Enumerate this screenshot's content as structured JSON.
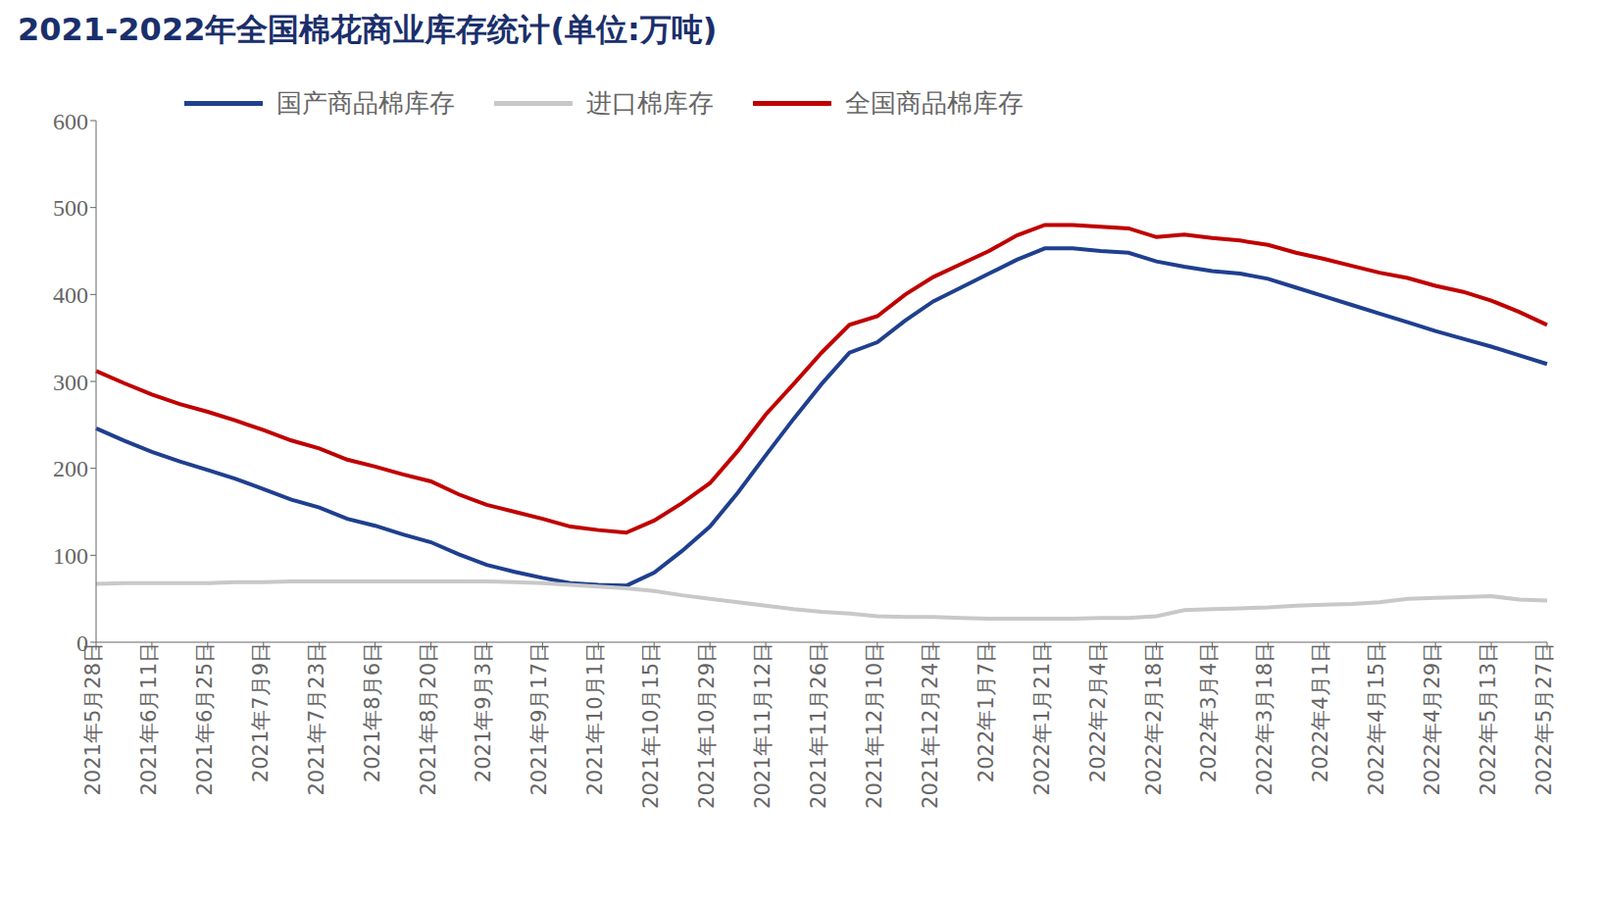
{
  "chart_data": {
    "type": "line",
    "title": "2021-2022年全国棉花商业库存统计(单位:万吨)",
    "categories": [
      "2021年5月28日",
      null,
      "2021年6月11日",
      null,
      "2021年6月25日",
      null,
      "2021年7月9日",
      null,
      "2021年7月23日",
      null,
      "2021年8月6日",
      null,
      "2021年8月20日",
      null,
      "2021年9月3日",
      null,
      "2021年9月17日",
      null,
      "2021年10月1日",
      null,
      "2021年10月15日",
      null,
      "2021年10月29日",
      null,
      "2021年11月12日",
      null,
      "2021年11月26日",
      null,
      "2021年12月10日",
      null,
      "2021年12月24日",
      null,
      "2022年1月7日",
      null,
      "2022年1月21日",
      null,
      "2022年2月4日",
      null,
      "2022年2月18日",
      null,
      "2022年3月4日",
      null,
      "2022年3月18日",
      null,
      "2022年4月1日",
      null,
      "2022年4月15日",
      null,
      "2022年4月29日",
      null,
      "2022年5月13日",
      null,
      "2022年5月27日"
    ],
    "series": [
      {
        "name": "国产商品棉库存",
        "color": "#1f3f8f",
        "values": [
          246,
          232,
          219,
          208,
          198,
          188,
          176,
          164,
          155,
          142,
          134,
          124,
          115,
          101,
          89,
          81,
          74,
          68,
          66,
          65,
          80,
          105,
          133,
          172,
          215,
          257,
          297,
          333,
          345,
          370,
          392,
          408,
          424,
          440,
          453,
          453,
          450,
          448,
          438,
          432,
          427,
          424,
          418,
          408,
          398,
          388,
          378,
          368,
          358,
          349,
          340,
          330,
          320
        ]
      },
      {
        "name": "进口棉库存",
        "color": "#c8c8c8",
        "values": [
          67,
          68,
          68,
          68,
          68,
          69,
          69,
          70,
          70,
          70,
          70,
          70,
          70,
          70,
          70,
          69,
          68,
          66,
          64,
          62,
          59,
          54,
          50,
          46,
          42,
          38,
          35,
          33,
          30,
          29,
          29,
          28,
          27,
          27,
          27,
          27,
          28,
          28,
          30,
          37,
          38,
          39,
          40,
          42,
          43,
          44,
          46,
          50,
          51,
          52,
          53,
          49,
          48
        ]
      },
      {
        "name": "全国商品棉库存",
        "color": "#c00000",
        "values": [
          312,
          298,
          285,
          274,
          265,
          255,
          244,
          232,
          223,
          210,
          202,
          193,
          185,
          170,
          158,
          150,
          142,
          133,
          129,
          126,
          140,
          160,
          183,
          220,
          262,
          297,
          333,
          365,
          375,
          400,
          420,
          435,
          450,
          468,
          480,
          480,
          478,
          476,
          466,
          469,
          465,
          462,
          457,
          448,
          441,
          433,
          425,
          419,
          410,
          403,
          393,
          380,
          365
        ]
      }
    ],
    "ylim": [
      0,
      600
    ],
    "yticks": [
      0,
      100,
      200,
      300,
      400,
      500,
      600
    ],
    "grid": false,
    "legend": "top"
  }
}
